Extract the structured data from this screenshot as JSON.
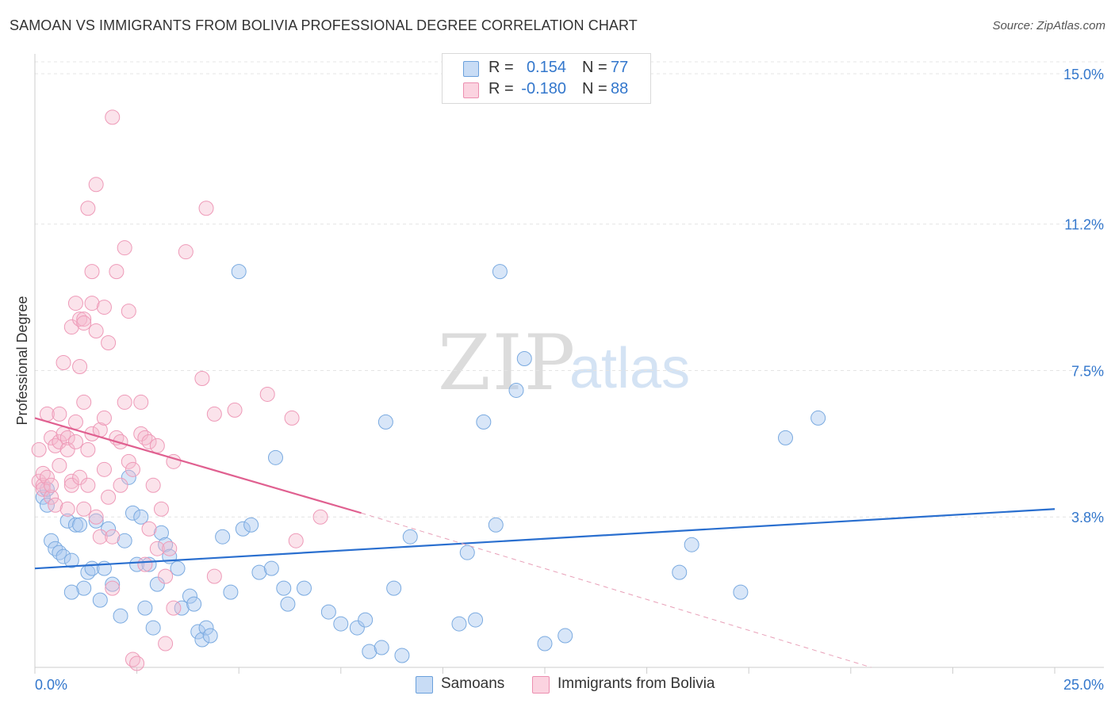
{
  "title": "SAMOAN VS IMMIGRANTS FROM BOLIVIA PROFESSIONAL DEGREE CORRELATION CHART",
  "source": "Source: ZipAtlas.com",
  "watermark": {
    "zip": "ZIP",
    "atlas": "atlas"
  },
  "legend_top": [
    {
      "r_label": "R =",
      "r_value": "0.154",
      "n_label": "N =",
      "n_value": "77",
      "color": "#a8c8f0"
    },
    {
      "r_label": "R =",
      "r_value": "-0.180",
      "n_label": "N =",
      "n_value": "88",
      "color": "#f5b8cc"
    }
  ],
  "legend_bottom": [
    {
      "label": "Samoans",
      "color": "#a8c8f0"
    },
    {
      "label": "Immigrants from Bolivia",
      "color": "#f5b8cc"
    }
  ],
  "chart_data": {
    "type": "scatter",
    "title": "SAMOAN VS IMMIGRANTS FROM BOLIVIA PROFESSIONAL DEGREE CORRELATION CHART",
    "xlabel": "",
    "ylabel": "Professional Degree",
    "xlim": [
      0,
      25
    ],
    "ylim": [
      0,
      15.5
    ],
    "x_tick_labels": [
      "0.0%",
      "25.0%"
    ],
    "y_ticks": [
      3.8,
      7.5,
      11.2,
      15.0
    ],
    "y_tick_labels": [
      "3.8%",
      "7.5%",
      "11.2%",
      "15.0%"
    ],
    "colors": {
      "Samoans": "#4a90d9",
      "Immigrants from Bolivia": "#e8709a"
    },
    "series": [
      {
        "name": "Samoans",
        "r": 0.154,
        "n": 77,
        "trend": {
          "x0": 0,
          "y0": 2.5,
          "x1": 25,
          "y1": 4.0
        },
        "points": [
          [
            0.2,
            4.3
          ],
          [
            0.3,
            4.5
          ],
          [
            0.3,
            4.1
          ],
          [
            0.4,
            3.2
          ],
          [
            0.5,
            3.0
          ],
          [
            0.6,
            2.9
          ],
          [
            0.7,
            2.8
          ],
          [
            0.8,
            3.7
          ],
          [
            0.9,
            2.7
          ],
          [
            1.0,
            3.6
          ],
          [
            1.1,
            3.6
          ],
          [
            1.2,
            2.0
          ],
          [
            1.3,
            2.4
          ],
          [
            1.4,
            2.5
          ],
          [
            1.5,
            3.7
          ],
          [
            1.6,
            1.7
          ],
          [
            1.7,
            2.5
          ],
          [
            1.8,
            3.5
          ],
          [
            1.9,
            2.1
          ],
          [
            2.1,
            1.3
          ],
          [
            2.2,
            3.2
          ],
          [
            2.3,
            4.8
          ],
          [
            2.4,
            3.9
          ],
          [
            2.5,
            2.6
          ],
          [
            2.6,
            3.8
          ],
          [
            2.7,
            1.5
          ],
          [
            2.8,
            2.6
          ],
          [
            2.9,
            1.0
          ],
          [
            3.0,
            2.1
          ],
          [
            3.1,
            3.4
          ],
          [
            3.2,
            3.1
          ],
          [
            3.3,
            2.8
          ],
          [
            3.5,
            2.5
          ],
          [
            3.6,
            1.5
          ],
          [
            3.8,
            1.8
          ],
          [
            3.9,
            1.6
          ],
          [
            4.0,
            0.9
          ],
          [
            4.1,
            0.7
          ],
          [
            4.2,
            1.0
          ],
          [
            4.3,
            0.8
          ],
          [
            4.6,
            3.3
          ],
          [
            4.8,
            1.9
          ],
          [
            5.0,
            10.0
          ],
          [
            5.1,
            3.5
          ],
          [
            5.3,
            3.6
          ],
          [
            5.5,
            2.4
          ],
          [
            5.8,
            2.5
          ],
          [
            5.9,
            5.3
          ],
          [
            6.1,
            2.0
          ],
          [
            6.2,
            1.6
          ],
          [
            6.6,
            2.0
          ],
          [
            7.2,
            1.4
          ],
          [
            7.5,
            1.1
          ],
          [
            7.9,
            1.0
          ],
          [
            8.1,
            1.2
          ],
          [
            8.2,
            0.4
          ],
          [
            8.5,
            0.5
          ],
          [
            8.6,
            6.2
          ],
          [
            8.8,
            2.0
          ],
          [
            9.0,
            0.3
          ],
          [
            9.2,
            3.3
          ],
          [
            10.4,
            1.1
          ],
          [
            10.6,
            2.9
          ],
          [
            10.8,
            1.2
          ],
          [
            11.0,
            6.2
          ],
          [
            11.3,
            3.6
          ],
          [
            11.4,
            10.0
          ],
          [
            11.8,
            7.0
          ],
          [
            12.0,
            7.8
          ],
          [
            12.5,
            0.6
          ],
          [
            13.0,
            0.8
          ],
          [
            15.8,
            2.4
          ],
          [
            16.1,
            3.1
          ],
          [
            17.3,
            1.9
          ],
          [
            18.4,
            5.8
          ],
          [
            19.2,
            6.3
          ],
          [
            0.9,
            1.9
          ]
        ]
      },
      {
        "name": "Immigrants from Bolivia",
        "r": -0.18,
        "n": 88,
        "trend": {
          "x0": 0,
          "y0": 6.3,
          "x1": 8.0,
          "y1": 3.9,
          "dashed_x1": 20.5,
          "dashed_y1": 0.0
        },
        "points": [
          [
            0.1,
            4.7
          ],
          [
            0.1,
            5.5
          ],
          [
            0.2,
            4.6
          ],
          [
            0.2,
            4.9
          ],
          [
            0.2,
            4.5
          ],
          [
            0.3,
            6.4
          ],
          [
            0.3,
            4.8
          ],
          [
            0.4,
            4.3
          ],
          [
            0.4,
            5.8
          ],
          [
            0.4,
            4.6
          ],
          [
            0.5,
            4.1
          ],
          [
            0.5,
            5.6
          ],
          [
            0.6,
            5.1
          ],
          [
            0.6,
            6.4
          ],
          [
            0.6,
            5.7
          ],
          [
            0.7,
            7.7
          ],
          [
            0.7,
            5.9
          ],
          [
            0.8,
            5.8
          ],
          [
            0.8,
            5.5
          ],
          [
            0.8,
            4.0
          ],
          [
            0.9,
            8.6
          ],
          [
            0.9,
            4.7
          ],
          [
            0.9,
            4.6
          ],
          [
            1.0,
            9.2
          ],
          [
            1.0,
            6.2
          ],
          [
            1.0,
            5.7
          ],
          [
            1.1,
            8.8
          ],
          [
            1.1,
            7.6
          ],
          [
            1.1,
            4.8
          ],
          [
            1.2,
            8.8
          ],
          [
            1.2,
            8.7
          ],
          [
            1.2,
            6.7
          ],
          [
            1.2,
            4.0
          ],
          [
            1.3,
            11.6
          ],
          [
            1.3,
            5.5
          ],
          [
            1.3,
            4.6
          ],
          [
            1.4,
            10.0
          ],
          [
            1.4,
            9.2
          ],
          [
            1.4,
            5.9
          ],
          [
            1.5,
            12.2
          ],
          [
            1.5,
            8.5
          ],
          [
            1.5,
            3.8
          ],
          [
            1.6,
            3.3
          ],
          [
            1.6,
            6.0
          ],
          [
            1.7,
            9.1
          ],
          [
            1.7,
            6.3
          ],
          [
            1.7,
            5.0
          ],
          [
            1.8,
            8.2
          ],
          [
            1.8,
            4.3
          ],
          [
            1.9,
            13.9
          ],
          [
            1.9,
            3.3
          ],
          [
            1.9,
            2.0
          ],
          [
            2.0,
            10.0
          ],
          [
            2.0,
            5.8
          ],
          [
            2.1,
            5.7
          ],
          [
            2.1,
            4.6
          ],
          [
            2.2,
            10.6
          ],
          [
            2.2,
            6.7
          ],
          [
            2.3,
            9.0
          ],
          [
            2.3,
            5.2
          ],
          [
            2.4,
            5.0
          ],
          [
            2.4,
            0.2
          ],
          [
            2.5,
            0.1
          ],
          [
            2.6,
            5.9
          ],
          [
            2.6,
            6.7
          ],
          [
            2.7,
            5.8
          ],
          [
            2.7,
            2.6
          ],
          [
            2.8,
            5.7
          ],
          [
            2.8,
            3.5
          ],
          [
            2.9,
            4.6
          ],
          [
            3.0,
            3.0
          ],
          [
            3.0,
            5.6
          ],
          [
            3.1,
            4.0
          ],
          [
            3.2,
            2.3
          ],
          [
            3.2,
            0.6
          ],
          [
            3.3,
            3.0
          ],
          [
            3.4,
            5.2
          ],
          [
            3.4,
            1.5
          ],
          [
            3.7,
            10.5
          ],
          [
            4.1,
            7.3
          ],
          [
            4.2,
            11.6
          ],
          [
            4.4,
            6.4
          ],
          [
            4.4,
            2.3
          ],
          [
            4.9,
            6.5
          ],
          [
            5.7,
            6.9
          ],
          [
            6.3,
            6.3
          ],
          [
            6.4,
            3.2
          ],
          [
            7.0,
            3.8
          ]
        ]
      }
    ]
  }
}
